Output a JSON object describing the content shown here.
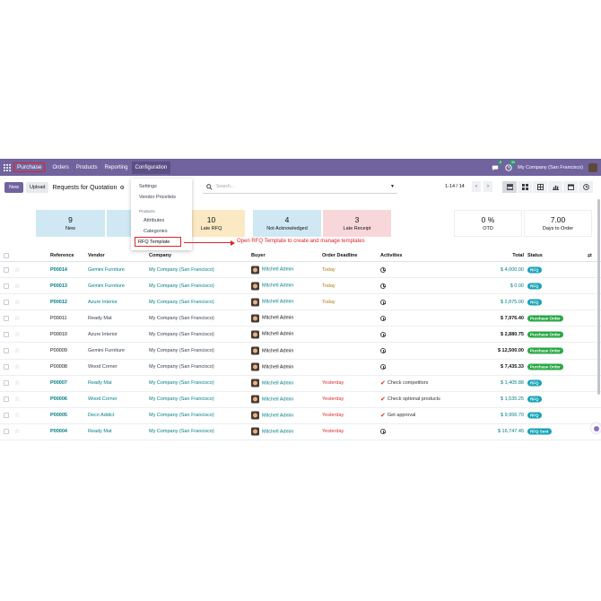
{
  "topbar": {
    "brand": "Purchase",
    "nav": [
      "Orders",
      "Products",
      "Reporting",
      "Configuration"
    ],
    "messages_badge": "8",
    "activities_badge": "30",
    "company": "My Company (San Francisco)"
  },
  "control_panel": {
    "new_label": "New",
    "upload_label": "Upload",
    "title": "Requests for Quotation",
    "search_placeholder": "Search...",
    "pager": "1-14 / 14"
  },
  "dropdown": {
    "items": [
      "Settings",
      "Vendor Pricelists"
    ],
    "section": "Products",
    "sub_items": [
      "Attributes",
      "Categories"
    ],
    "highlighted": "RFQ Template"
  },
  "annotation": {
    "text": "Open RFQ Template to create and manage templates",
    "color": "#e02424"
  },
  "cards": [
    {
      "num": "9",
      "label": "New",
      "color": "#cfe8f3"
    },
    {
      "num": "10",
      "label": "Late RFQ",
      "color": "#fbe9c3"
    },
    {
      "num": "4",
      "label": "Not Acknowledged",
      "color": "#cfe8f3"
    },
    {
      "num": "3",
      "label": "Late Receipt",
      "color": "#f8d7da"
    },
    {
      "num": "0 %",
      "label": "OTD",
      "color": "#ffffff"
    },
    {
      "num": "7.00",
      "label": "Days to Order",
      "color": "#ffffff"
    }
  ],
  "table": {
    "headers": [
      "Reference",
      "Vendor",
      "Company",
      "Buyer",
      "Order Deadline",
      "Activities",
      "Total",
      "Status"
    ],
    "rows": [
      {
        "ref": "P00014",
        "vendor": "Gemini Furniture",
        "company": "My Company (San Francisco)",
        "buyer": "Mitchell Admin",
        "deadline": "Today",
        "activity": "",
        "total": "$ 4,000.00",
        "status": "RFQ"
      },
      {
        "ref": "P00013",
        "vendor": "Gemini Furniture",
        "company": "My Company (San Francisco)",
        "buyer": "Mitchell Admin",
        "deadline": "Today",
        "activity": "",
        "total": "$ 0.00",
        "status": "RFQ"
      },
      {
        "ref": "P00012",
        "vendor": "Azure Interior",
        "company": "My Company (San Francisco)",
        "buyer": "Mitchell Admin",
        "deadline": "Today",
        "activity": "",
        "total": "$ 2,875.00",
        "status": "RFQ"
      },
      {
        "ref": "P00011",
        "vendor": "Ready Mat",
        "company": "My Company (San Francisco)",
        "buyer": "Mitchell Admin",
        "deadline": "",
        "activity": "",
        "total": "$ 7,976.40",
        "status": "Purchase Order"
      },
      {
        "ref": "P00010",
        "vendor": "Azure Interior",
        "company": "My Company (San Francisco)",
        "buyer": "Mitchell Admin",
        "deadline": "",
        "activity": "",
        "total": "$ 2,880.75",
        "status": "Purchase Order"
      },
      {
        "ref": "P00009",
        "vendor": "Gemini Furniture",
        "company": "My Company (San Francisco)",
        "buyer": "Mitchell Admin",
        "deadline": "",
        "activity": "",
        "total": "$ 12,500.00",
        "status": "Purchase Order"
      },
      {
        "ref": "P00008",
        "vendor": "Wood Corner",
        "company": "My Company (San Francisco)",
        "buyer": "Mitchell Admin",
        "deadline": "",
        "activity": "",
        "total": "$ 7,435.33",
        "status": "Purchase Order"
      },
      {
        "ref": "P00007",
        "vendor": "Ready Mat",
        "company": "My Company (San Francisco)",
        "buyer": "Mitchell Admin",
        "deadline": "Yesterday",
        "activity": "Check competitors",
        "total": "$ 1,405.88",
        "status": "RFQ"
      },
      {
        "ref": "P00006",
        "vendor": "Wood Corner",
        "company": "My Company (San Francisco)",
        "buyer": "Mitchell Admin",
        "deadline": "Yesterday",
        "activity": "Check optional products",
        "total": "$ 1,535.25",
        "status": "RFQ"
      },
      {
        "ref": "P00005",
        "vendor": "Deco Addict",
        "company": "My Company (San Francisco)",
        "buyer": "Mitchell Admin",
        "deadline": "Yesterday",
        "activity": "Get approval",
        "total": "$ 9,956.70",
        "status": "RFQ"
      },
      {
        "ref": "P00004",
        "vendor": "Ready Mat",
        "company": "My Company (San Francisco)",
        "buyer": "Mitchell Admin",
        "deadline": "Yesterday",
        "activity": "",
        "total": "$ 16,747.45",
        "status": "RFQ Sent"
      }
    ]
  },
  "colors": {
    "brand": "#71639e",
    "link": "#017e84",
    "rfq": "#17a2b8",
    "po": "#28a745"
  }
}
